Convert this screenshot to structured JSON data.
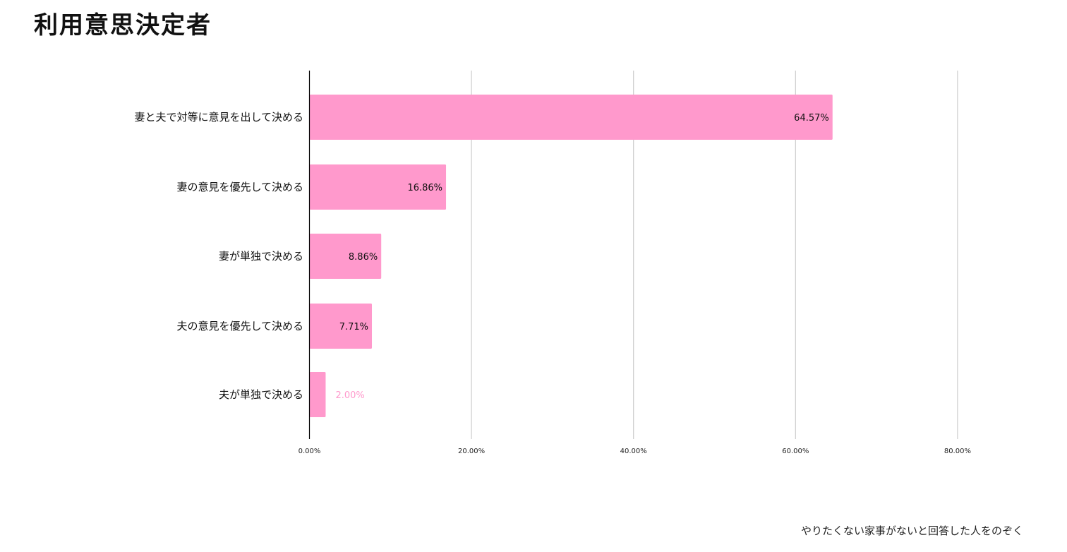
{
  "title": "利用意思決定者",
  "footnote": "やりたくない家事がないと回答した人をのぞく",
  "chart_data": {
    "type": "bar",
    "orientation": "horizontal",
    "categories": [
      "妻と夫で対等に意見を出して決める",
      "妻の意見を優先して決める",
      "妻が単独で決める",
      "夫の意見を優先して決める",
      "夫が単独で決める"
    ],
    "values": [
      64.57,
      16.86,
      8.86,
      7.71,
      2.0
    ],
    "data_labels": [
      "64.57%",
      "16.86%",
      "8.86%",
      "7.71%",
      "2.00%"
    ],
    "x_ticks": [
      "0.00%",
      "20.00%",
      "40.00%",
      "60.00%",
      "80.00%"
    ],
    "xlim": [
      0,
      80
    ],
    "grid": "vertical",
    "legend": "none",
    "colors": {
      "bar": "#ff99cc",
      "grid": "#cccccc",
      "axis": "#000000",
      "inside_label": "#111111",
      "outside_label": "#ff99cc"
    }
  }
}
